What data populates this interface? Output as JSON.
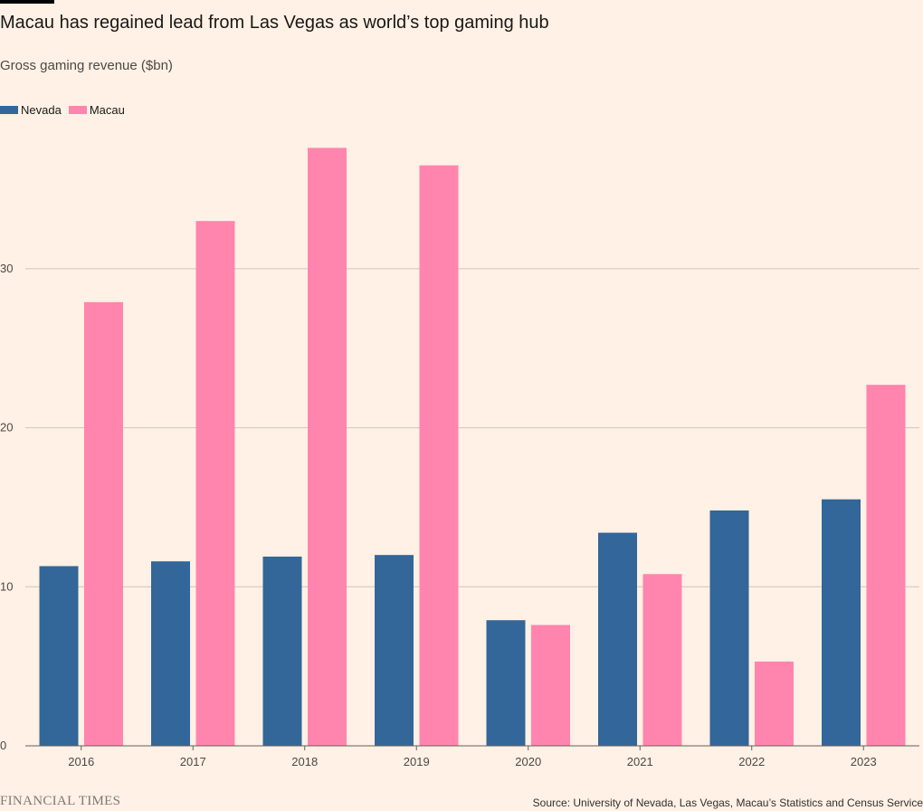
{
  "title": "Macau has regained lead from Las Vegas as world’s top gaming hub",
  "subtitle": "Gross gaming revenue ($bn)",
  "legend": [
    {
      "name": "Nevada",
      "color": "#336699"
    },
    {
      "name": "Macau",
      "color": "#ff85ae"
    }
  ],
  "footer": {
    "brand": "FINANCIAL TIMES",
    "source": "Source: University of Nevada, Las Vegas, Macau’s Statistics and Census Service"
  },
  "chart_data": {
    "type": "bar",
    "categories": [
      "2016",
      "2017",
      "2018",
      "2019",
      "2020",
      "2021",
      "2022",
      "2023"
    ],
    "series": [
      {
        "name": "Nevada",
        "color": "#336699",
        "values": [
          11.3,
          11.6,
          11.9,
          12.0,
          7.9,
          13.4,
          14.8,
          15.5
        ]
      },
      {
        "name": "Macau",
        "color": "#ff85ae",
        "values": [
          27.9,
          33.0,
          37.6,
          36.5,
          7.6,
          10.8,
          5.3,
          22.7
        ]
      }
    ],
    "yticks": [
      0,
      10,
      20,
      30
    ],
    "ylim": [
      0,
      37.6
    ],
    "grid": true,
    "legend_position": "top-left",
    "xlabel": "",
    "ylabel": ""
  }
}
